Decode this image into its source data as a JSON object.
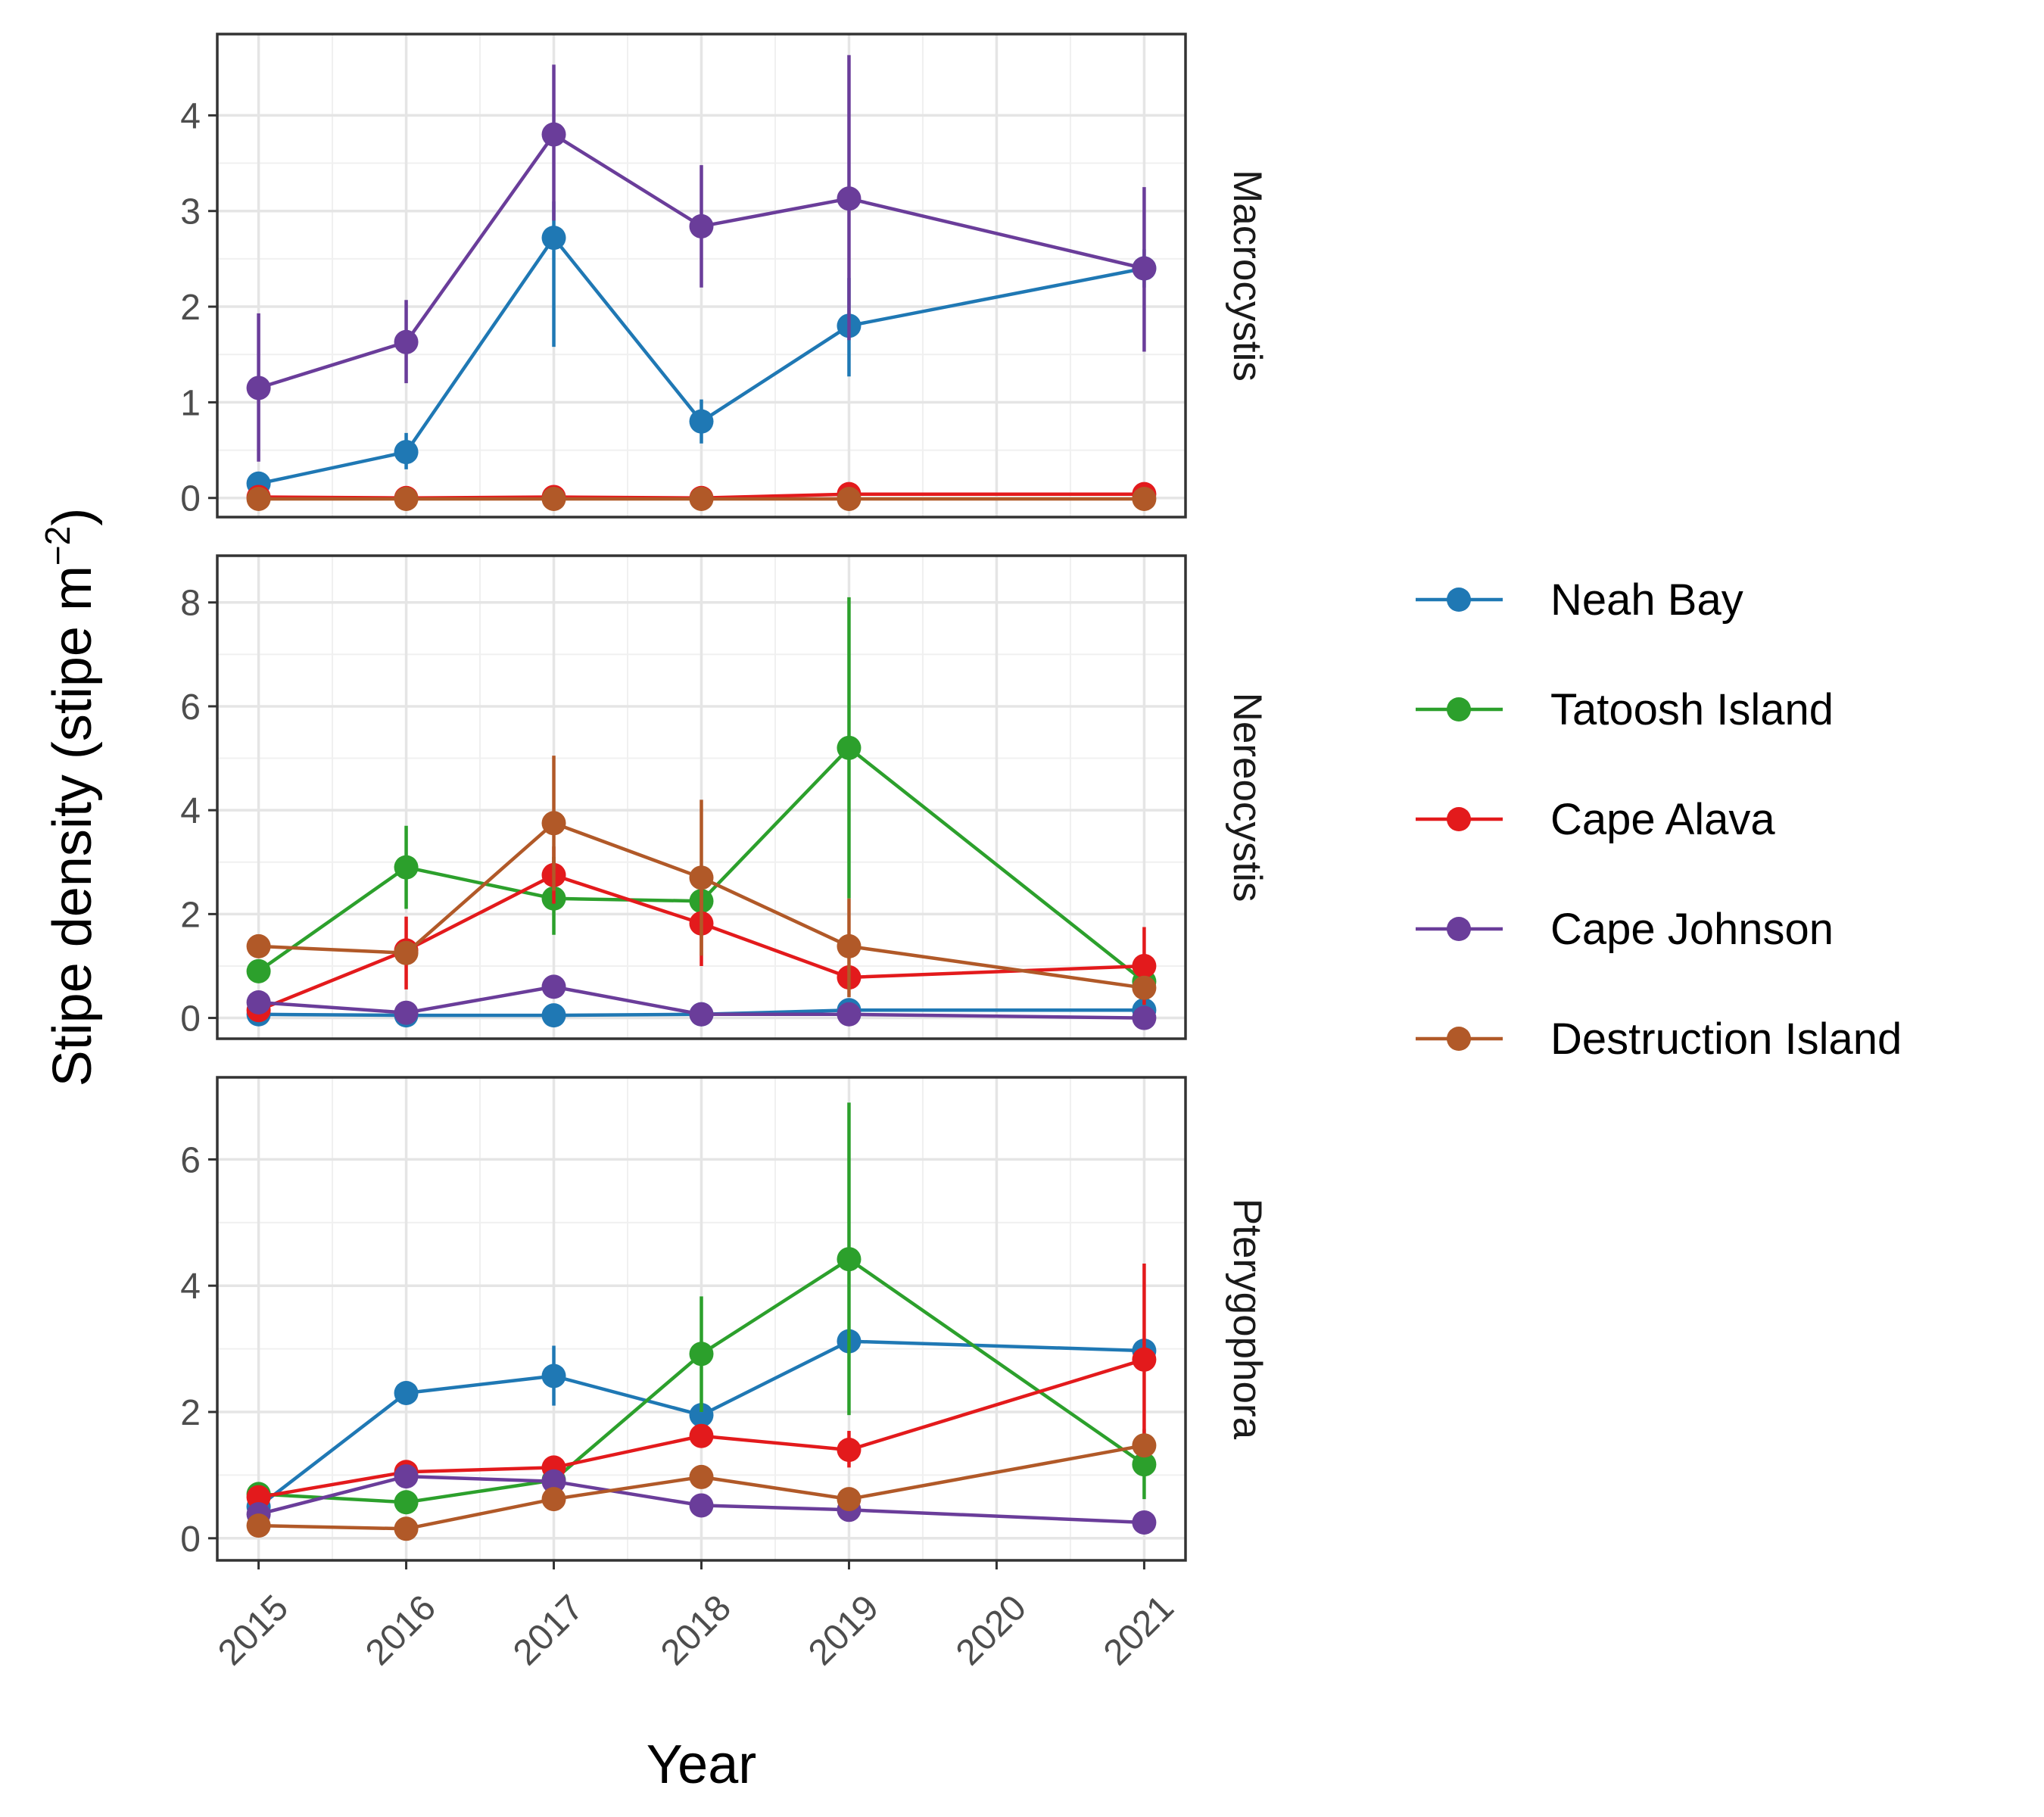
{
  "chart_data": {
    "type": "line",
    "xlabel": "Year",
    "ylabel": "Stipe density (stipe m",
    "ylabel_superscript": "−2",
    "ylabel_close": ")",
    "x_ticks": [
      "2015",
      "2016",
      "2017",
      "2018",
      "2019",
      "2020",
      "2021"
    ],
    "xlim": [
      2014.72,
      2021.28
    ],
    "grid": true,
    "legend_position": "right",
    "series_styles": [
      {
        "name": "Neah Bay",
        "color": "#1f78b4"
      },
      {
        "name": "Tatoosh Island",
        "color": "#2ca02c"
      },
      {
        "name": "Cape Alava",
        "color": "#e31a1c"
      },
      {
        "name": "Cape Johnson",
        "color": "#6a3d9a"
      },
      {
        "name": "Destruction Island",
        "color": "#b15928"
      }
    ],
    "panels": [
      {
        "strip": "Macrocystis",
        "ylim": [
          -0.2,
          4.85
        ],
        "yticks": [
          0,
          1,
          2,
          3,
          4
        ],
        "series": [
          {
            "name": "Neah Bay",
            "points": [
              {
                "x": 2015,
                "y": 0.15,
                "lo": 0.05,
                "hi": 0.25
              },
              {
                "x": 2016,
                "y": 0.48,
                "lo": 0.3,
                "hi": 0.68
              },
              {
                "x": 2017,
                "y": 2.72,
                "lo": 1.58,
                "hi": 3.1
              },
              {
                "x": 2018,
                "y": 0.8,
                "lo": 0.57,
                "hi": 1.03
              },
              {
                "x": 2019,
                "y": 1.8,
                "lo": 1.27,
                "hi": 2.3
              },
              {
                "x": 2021,
                "y": 2.4,
                "lo": 2.2,
                "hi": 2.6
              }
            ]
          },
          {
            "name": "Tatoosh Island",
            "points": []
          },
          {
            "name": "Cape Alava",
            "points": [
              {
                "x": 2015,
                "y": 0.01
              },
              {
                "x": 2016,
                "y": 0.0
              },
              {
                "x": 2017,
                "y": 0.01
              },
              {
                "x": 2018,
                "y": 0.0
              },
              {
                "x": 2019,
                "y": 0.04
              },
              {
                "x": 2021,
                "y": 0.04
              }
            ]
          },
          {
            "name": "Cape Johnson",
            "points": [
              {
                "x": 2015,
                "y": 1.15,
                "lo": 0.38,
                "hi": 1.93
              },
              {
                "x": 2016,
                "y": 1.63,
                "lo": 1.2,
                "hi": 2.07
              },
              {
                "x": 2017,
                "y": 3.8,
                "lo": 2.9,
                "hi": 4.53
              },
              {
                "x": 2018,
                "y": 2.84,
                "lo": 2.2,
                "hi": 3.48
              },
              {
                "x": 2019,
                "y": 3.13,
                "lo": 1.65,
                "hi": 4.63
              },
              {
                "x": 2021,
                "y": 2.4,
                "lo": 1.53,
                "hi": 3.25
              }
            ]
          },
          {
            "name": "Destruction Island",
            "points": [
              {
                "x": 2015,
                "y": -0.01
              },
              {
                "x": 2016,
                "y": -0.01
              },
              {
                "x": 2017,
                "y": -0.01
              },
              {
                "x": 2018,
                "y": -0.01
              },
              {
                "x": 2019,
                "y": -0.01
              },
              {
                "x": 2021,
                "y": -0.01
              }
            ]
          }
        ]
      },
      {
        "strip": "Nereocystis",
        "ylim": [
          -0.4,
          8.9
        ],
        "yticks": [
          0,
          2,
          4,
          6,
          8
        ],
        "series": [
          {
            "name": "Neah Bay",
            "points": [
              {
                "x": 2015,
                "y": 0.07
              },
              {
                "x": 2016,
                "y": 0.05
              },
              {
                "x": 2017,
                "y": 0.05
              },
              {
                "x": 2018,
                "y": 0.07
              },
              {
                "x": 2019,
                "y": 0.15
              },
              {
                "x": 2021,
                "y": 0.15
              }
            ]
          },
          {
            "name": "Tatoosh Island",
            "points": [
              {
                "x": 2015,
                "y": 0.9
              },
              {
                "x": 2016,
                "y": 2.9,
                "lo": 2.1,
                "hi": 3.7
              },
              {
                "x": 2017,
                "y": 2.3,
                "lo": 1.6,
                "hi": 3.1
              },
              {
                "x": 2018,
                "y": 2.25
              },
              {
                "x": 2019,
                "y": 5.2,
                "lo": 2.3,
                "hi": 8.1
              },
              {
                "x": 2021,
                "y": 0.7
              }
            ]
          },
          {
            "name": "Cape Alava",
            "points": [
              {
                "x": 2015,
                "y": 0.15
              },
              {
                "x": 2016,
                "y": 1.3,
                "lo": 0.55,
                "hi": 1.95
              },
              {
                "x": 2017,
                "y": 2.75,
                "lo": 2.2,
                "hi": 3.3
              },
              {
                "x": 2018,
                "y": 1.82,
                "lo": 1.0,
                "hi": 2.65
              },
              {
                "x": 2019,
                "y": 0.78,
                "lo": 0.6,
                "hi": 0.95
              },
              {
                "x": 2021,
                "y": 1.0,
                "lo": 0.25,
                "hi": 1.75
              }
            ]
          },
          {
            "name": "Cape Johnson",
            "points": [
              {
                "x": 2015,
                "y": 0.3
              },
              {
                "x": 2016,
                "y": 0.1
              },
              {
                "x": 2017,
                "y": 0.6
              },
              {
                "x": 2018,
                "y": 0.07
              },
              {
                "x": 2019,
                "y": 0.07
              },
              {
                "x": 2021,
                "y": 0.0
              }
            ]
          },
          {
            "name": "Destruction Island",
            "points": [
              {
                "x": 2015,
                "y": 1.38
              },
              {
                "x": 2016,
                "y": 1.25
              },
              {
                "x": 2017,
                "y": 3.75,
                "lo": 2.45,
                "hi": 5.05
              },
              {
                "x": 2018,
                "y": 2.7,
                "lo": 1.2,
                "hi": 4.2
              },
              {
                "x": 2019,
                "y": 1.38,
                "lo": 0.4,
                "hi": 2.3
              },
              {
                "x": 2021,
                "y": 0.58
              }
            ]
          }
        ]
      },
      {
        "strip": "Pterygophora",
        "ylim": [
          -0.35,
          7.3
        ],
        "yticks": [
          0,
          2,
          4,
          6
        ],
        "series": [
          {
            "name": "Neah Bay",
            "points": [
              {
                "x": 2015,
                "y": 0.5
              },
              {
                "x": 2016,
                "y": 2.3
              },
              {
                "x": 2017,
                "y": 2.57,
                "lo": 2.1,
                "hi": 3.05
              },
              {
                "x": 2018,
                "y": 1.95
              },
              {
                "x": 2019,
                "y": 3.12
              },
              {
                "x": 2021,
                "y": 2.97
              }
            ]
          },
          {
            "name": "Tatoosh Island",
            "points": [
              {
                "x": 2015,
                "y": 0.7
              },
              {
                "x": 2016,
                "y": 0.57
              },
              {
                "x": 2017,
                "y": 0.92
              },
              {
                "x": 2018,
                "y": 2.92,
                "lo": 2.0,
                "hi": 3.83
              },
              {
                "x": 2019,
                "y": 4.42,
                "lo": 1.95,
                "hi": 6.9
              },
              {
                "x": 2021,
                "y": 1.17,
                "lo": 0.62,
                "hi": 1.73
              }
            ]
          },
          {
            "name": "Cape Alava",
            "points": [
              {
                "x": 2015,
                "y": 0.65
              },
              {
                "x": 2016,
                "y": 1.05
              },
              {
                "x": 2017,
                "y": 1.12
              },
              {
                "x": 2018,
                "y": 1.62
              },
              {
                "x": 2019,
                "y": 1.4,
                "lo": 1.12,
                "hi": 1.7
              },
              {
                "x": 2021,
                "y": 2.83,
                "lo": 1.3,
                "hi": 4.35
              }
            ]
          },
          {
            "name": "Cape Johnson",
            "points": [
              {
                "x": 2015,
                "y": 0.38
              },
              {
                "x": 2016,
                "y": 0.98
              },
              {
                "x": 2017,
                "y": 0.9
              },
              {
                "x": 2018,
                "y": 0.52
              },
              {
                "x": 2019,
                "y": 0.45
              },
              {
                "x": 2021,
                "y": 0.25
              }
            ]
          },
          {
            "name": "Destruction Island",
            "points": [
              {
                "x": 2015,
                "y": 0.2
              },
              {
                "x": 2016,
                "y": 0.15
              },
              {
                "x": 2017,
                "y": 0.62
              },
              {
                "x": 2018,
                "y": 0.97
              },
              {
                "x": 2019,
                "y": 0.62
              },
              {
                "x": 2021,
                "y": 1.47
              }
            ]
          }
        ]
      }
    ]
  }
}
